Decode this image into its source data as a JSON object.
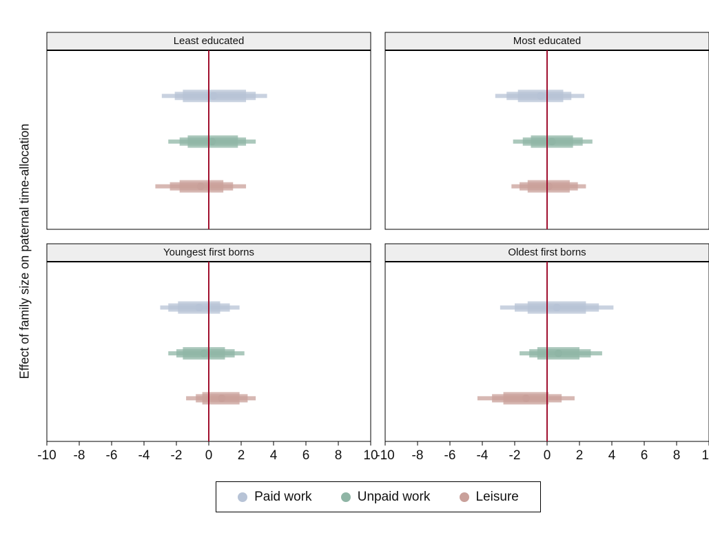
{
  "chart_data": {
    "type": "scatter",
    "subtype": "coefficient-plot-with-confidence-bands",
    "ylabel": "Effect of family size on paternal time-allocation",
    "xlim": [
      -10,
      10
    ],
    "xticks": [
      -10,
      -8,
      -6,
      -4,
      -2,
      0,
      2,
      4,
      6,
      8,
      10
    ],
    "reference_line_x": 0,
    "legend_position": "bottom",
    "series_colors": {
      "Paid work": "#b7c3d6",
      "Unpaid work": "#8fb5a5",
      "Leisure": "#c9a09a"
    },
    "panels": [
      {
        "title": "Least educated",
        "estimates": [
          {
            "series": "Paid work",
            "estimate": 0.3,
            "ci90": [
              -1.6,
              2.3
            ],
            "ci95": [
              -2.1,
              2.9
            ],
            "ci99": [
              -2.9,
              3.6
            ]
          },
          {
            "series": "Unpaid work",
            "estimate": 0.2,
            "ci90": [
              -1.3,
              1.8
            ],
            "ci95": [
              -1.8,
              2.3
            ],
            "ci99": [
              -2.5,
              2.9
            ]
          },
          {
            "series": "Leisure",
            "estimate": -0.5,
            "ci90": [
              -1.8,
              0.9
            ],
            "ci95": [
              -2.4,
              1.5
            ],
            "ci99": [
              -3.3,
              2.3
            ]
          }
        ]
      },
      {
        "title": "Most educated",
        "estimates": [
          {
            "series": "Paid work",
            "estimate": -0.4,
            "ci90": [
              -1.8,
              1.0
            ],
            "ci95": [
              -2.5,
              1.5
            ],
            "ci99": [
              -3.2,
              2.3
            ]
          },
          {
            "series": "Unpaid work",
            "estimate": 0.3,
            "ci90": [
              -1.0,
              1.6
            ],
            "ci95": [
              -1.5,
              2.2
            ],
            "ci99": [
              -2.1,
              2.8
            ]
          },
          {
            "series": "Leisure",
            "estimate": 0.1,
            "ci90": [
              -1.2,
              1.4
            ],
            "ci95": [
              -1.7,
              1.9
            ],
            "ci99": [
              -2.2,
              2.4
            ]
          }
        ]
      },
      {
        "title": "Youngest first borns",
        "estimates": [
          {
            "series": "Paid work",
            "estimate": -0.6,
            "ci90": [
              -1.9,
              0.7
            ],
            "ci95": [
              -2.5,
              1.3
            ],
            "ci99": [
              -3.0,
              1.9
            ]
          },
          {
            "series": "Unpaid work",
            "estimate": -0.3,
            "ci90": [
              -1.6,
              1.0
            ],
            "ci95": [
              -2.0,
              1.6
            ],
            "ci99": [
              -2.5,
              2.2
            ]
          },
          {
            "series": "Leisure",
            "estimate": 0.8,
            "ci90": [
              -0.4,
              1.9
            ],
            "ci95": [
              -0.8,
              2.4
            ],
            "ci99": [
              -1.4,
              2.9
            ]
          }
        ]
      },
      {
        "title": "Oldest first borns",
        "estimates": [
          {
            "series": "Paid work",
            "estimate": 0.6,
            "ci90": [
              -1.2,
              2.4
            ],
            "ci95": [
              -2.0,
              3.2
            ],
            "ci99": [
              -2.9,
              4.1
            ]
          },
          {
            "series": "Unpaid work",
            "estimate": 0.7,
            "ci90": [
              -0.6,
              2.0
            ],
            "ci95": [
              -1.1,
              2.7
            ],
            "ci99": [
              -1.7,
              3.4
            ]
          },
          {
            "series": "Leisure",
            "estimate": -1.3,
            "ci90": [
              -2.7,
              0.1
            ],
            "ci95": [
              -3.4,
              0.9
            ],
            "ci99": [
              -4.3,
              1.7
            ]
          }
        ]
      }
    ]
  },
  "legend": {
    "items": [
      {
        "label": "Paid work",
        "color": "#b7c3d6"
      },
      {
        "label": "Unpaid work",
        "color": "#8fb5a5"
      },
      {
        "label": "Leisure",
        "color": "#c9a09a"
      }
    ]
  }
}
